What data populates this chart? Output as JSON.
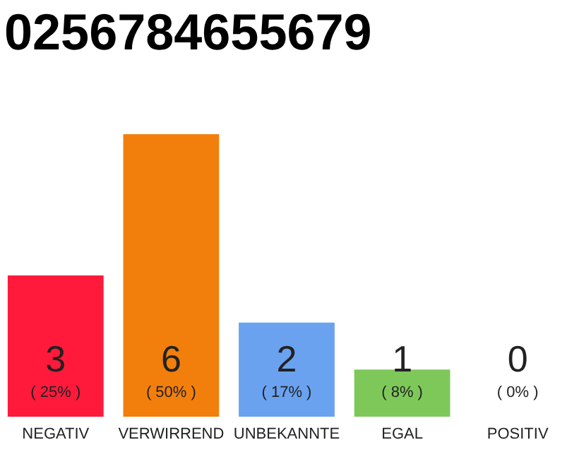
{
  "chart_data": {
    "type": "bar",
    "title": "0256784655679",
    "categories": [
      "NEGATIV",
      "VERWIRREND",
      "UNBEKANNTE",
      "EGAL",
      "POSITIV"
    ],
    "values": [
      3,
      6,
      2,
      1,
      0
    ],
    "colors": [
      "#ff1a3c",
      "#f27f0c",
      "#6aa2f0",
      "#7ec85a",
      "#cccccc"
    ],
    "annotations": [
      "( 25% )",
      "( 50% )",
      "( 17% )",
      "( 8% )",
      "( 0% )"
    ],
    "data_labels": true,
    "tick_labels": "x"
  }
}
